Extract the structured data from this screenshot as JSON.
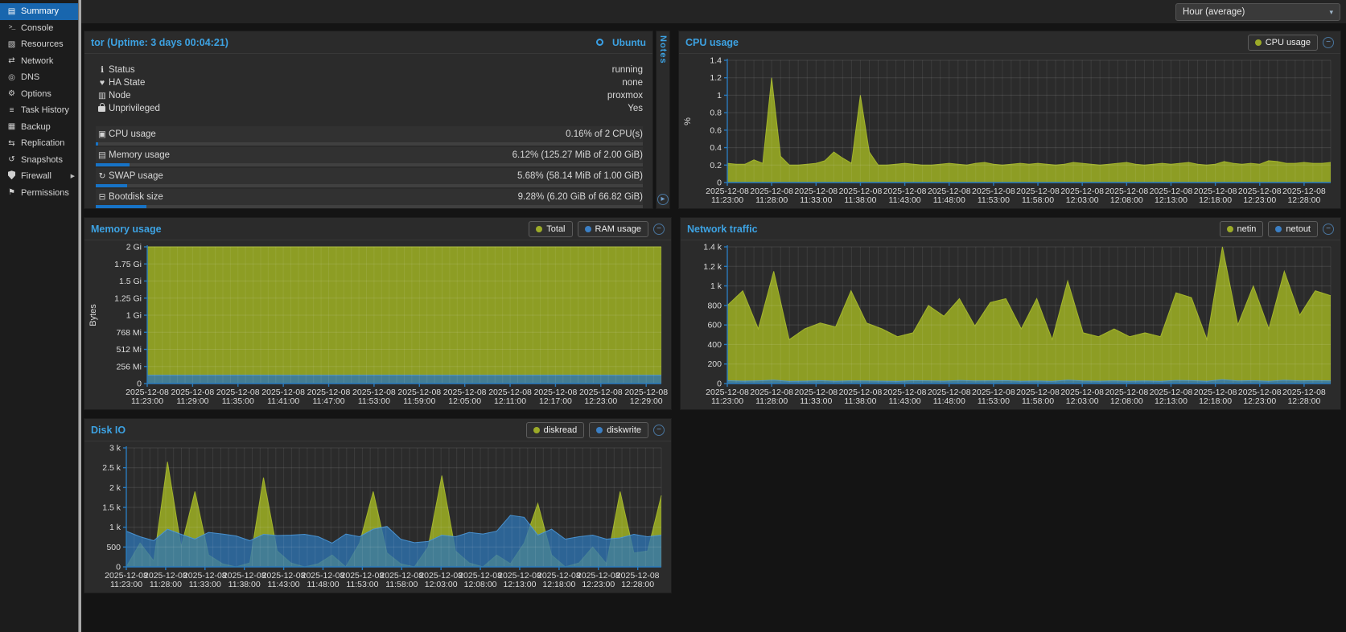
{
  "topbar": {
    "timeframe": "Hour (average)"
  },
  "icons": {
    "summary": "▤",
    "console": ">_",
    "resources": "▧",
    "network": "⇄",
    "dns": "◎",
    "options": "⚙",
    "task-history": "≡",
    "backup": "▦",
    "replication": "⇆",
    "snapshots": "↺",
    "firewall": "",
    "permissions": "⚑",
    "info": "ℹ",
    "heart": "♥",
    "node": "▥",
    "lock": "",
    "cpu": "▣",
    "memory": "▤",
    "swap": "↻",
    "bootdisk": "⊟",
    "minus": "−",
    "chevron-down": "▾",
    "chevron-right": "▸",
    "submenu-arrow": "▶"
  },
  "colors": {
    "accent_blue": "#3da2e2",
    "axis_blue": "#2a7abc",
    "series_olive": "#8d9d24",
    "series_olive_stroke": "#a9bb2a",
    "series_blue": "#2e74b4",
    "series_blue_stroke": "#4a97d8",
    "meter_fill": "#1773c6",
    "legend_dot_olive": "#9cab28",
    "legend_dot_blue": "#3b7fc4"
  },
  "sidebar": {
    "items": [
      {
        "label": "Summary",
        "icon": "summary",
        "selected": true
      },
      {
        "label": "Console",
        "icon": "console"
      },
      {
        "label": "Resources",
        "icon": "resources"
      },
      {
        "label": "Network",
        "icon": "network"
      },
      {
        "label": "DNS",
        "icon": "dns"
      },
      {
        "label": "Options",
        "icon": "options"
      },
      {
        "label": "Task History",
        "icon": "task-history"
      },
      {
        "label": "Backup",
        "icon": "backup"
      },
      {
        "label": "Replication",
        "icon": "replication"
      },
      {
        "label": "Snapshots",
        "icon": "snapshots"
      },
      {
        "label": "Firewall",
        "icon": "firewall",
        "has_submenu": true
      },
      {
        "label": "Permissions",
        "icon": "permissions"
      }
    ]
  },
  "status_panel": {
    "title": "tor (Uptime: 3 days 00:04:21)",
    "os_label": "Ubuntu",
    "notes_tab": "Notes",
    "rows": [
      {
        "icon": "info",
        "label": "Status",
        "value": "running"
      },
      {
        "icon": "heart",
        "label": "HA State",
        "value": "none"
      },
      {
        "icon": "node",
        "label": "Node",
        "value": "proxmox"
      },
      {
        "icon": "lock",
        "label": "Unprivileged",
        "value": "Yes"
      }
    ],
    "meters": [
      {
        "icon": "cpu",
        "label": "CPU usage",
        "value": "0.16% of 2 CPU(s)",
        "percent": 0.16
      },
      {
        "icon": "memory",
        "label": "Memory usage",
        "value": "6.12% (125.27 MiB of 2.00 GiB)",
        "percent": 6.12
      },
      {
        "icon": "swap",
        "label": "SWAP usage",
        "value": "5.68% (58.14 MiB of 1.00 GiB)",
        "percent": 5.68
      },
      {
        "icon": "bootdisk",
        "label": "Bootdisk size",
        "value": "9.28% (6.20 GiB of 66.82 GiB)",
        "percent": 9.28
      }
    ]
  },
  "chart_data": [
    {
      "id": "cpu",
      "type": "area",
      "title": "CPU usage",
      "ylabel": "%",
      "ylim": [
        0,
        1.4
      ],
      "grid": true,
      "legend_position": "header-right",
      "legend": [
        {
          "label": "CPU usage",
          "color": "#9cab28"
        }
      ],
      "yticks": [
        {
          "v": 1.4,
          "label": "1.4"
        },
        {
          "v": 1.2,
          "label": "1.2"
        },
        {
          "v": 1.0,
          "label": "1"
        },
        {
          "v": 0.8,
          "label": "0.8"
        },
        {
          "v": 0.6,
          "label": "0.6"
        },
        {
          "v": 0.4,
          "label": "0.4"
        },
        {
          "v": 0.2,
          "label": "0.2"
        },
        {
          "v": 0,
          "label": "0"
        }
      ],
      "x_date": "2025-12-08",
      "x_total_minutes": 68,
      "xticks": [
        {
          "m": 0,
          "t": "11:23:00"
        },
        {
          "m": 5,
          "t": "11:28:00"
        },
        {
          "m": 10,
          "t": "11:33:00"
        },
        {
          "m": 15,
          "t": "11:38:00"
        },
        {
          "m": 20,
          "t": "11:43:00"
        },
        {
          "m": 25,
          "t": "11:48:00"
        },
        {
          "m": 30,
          "t": "11:53:00"
        },
        {
          "m": 35,
          "t": "11:58:00"
        },
        {
          "m": 40,
          "t": "12:03:00"
        },
        {
          "m": 45,
          "t": "12:08:00"
        },
        {
          "m": 50,
          "t": "12:13:00"
        },
        {
          "m": 55,
          "t": "12:18:00"
        },
        {
          "m": 60,
          "t": "12:23:00"
        },
        {
          "m": 65,
          "t": "12:28:00"
        }
      ],
      "series": [
        {
          "name": "CPU usage",
          "color": "#8d9d24",
          "stroke": "#a9bb2a",
          "opacity": 1,
          "values": [
            0.22,
            0.21,
            0.21,
            0.26,
            0.22,
            1.2,
            0.3,
            0.2,
            0.2,
            0.21,
            0.22,
            0.25,
            0.35,
            0.28,
            0.22,
            1.0,
            0.35,
            0.2,
            0.2,
            0.21,
            0.22,
            0.21,
            0.2,
            0.2,
            0.21,
            0.22,
            0.21,
            0.2,
            0.22,
            0.23,
            0.21,
            0.2,
            0.21,
            0.22,
            0.21,
            0.22,
            0.21,
            0.2,
            0.21,
            0.23,
            0.22,
            0.21,
            0.2,
            0.21,
            0.22,
            0.23,
            0.21,
            0.2,
            0.21,
            0.22,
            0.21,
            0.22,
            0.23,
            0.21,
            0.2,
            0.21,
            0.24,
            0.22,
            0.21,
            0.22,
            0.21,
            0.25,
            0.24,
            0.22,
            0.22,
            0.23,
            0.22,
            0.22,
            0.23
          ]
        }
      ]
    },
    {
      "id": "memory",
      "type": "area",
      "title": "Memory usage",
      "ylabel": "Bytes",
      "ylim": [
        0,
        2
      ],
      "grid": true,
      "legend_position": "header-right",
      "legend": [
        {
          "label": "Total",
          "color": "#9cab28"
        },
        {
          "label": "RAM usage",
          "color": "#3b7fc4"
        }
      ],
      "yticks": [
        {
          "v": 2,
          "label": "2 Gi"
        },
        {
          "v": 1.75,
          "label": "1.75 Gi"
        },
        {
          "v": 1.5,
          "label": "1.5 Gi"
        },
        {
          "v": 1.25,
          "label": "1.25 Gi"
        },
        {
          "v": 1,
          "label": "1 Gi"
        },
        {
          "v": 0.75,
          "label": "768 Mi"
        },
        {
          "v": 0.5,
          "label": "512 Mi"
        },
        {
          "v": 0.25,
          "label": "256 Mi"
        },
        {
          "v": 0,
          "label": "0"
        }
      ],
      "x_date": "2025-12-08",
      "x_total_minutes": 68,
      "xticks": [
        {
          "m": 0,
          "t": "11:23:00"
        },
        {
          "m": 6,
          "t": "11:29:00"
        },
        {
          "m": 12,
          "t": "11:35:00"
        },
        {
          "m": 18,
          "t": "11:41:00"
        },
        {
          "m": 24,
          "t": "11:47:00"
        },
        {
          "m": 30,
          "t": "11:53:00"
        },
        {
          "m": 36,
          "t": "11:59:00"
        },
        {
          "m": 42,
          "t": "12:05:00"
        },
        {
          "m": 48,
          "t": "12:11:00"
        },
        {
          "m": 54,
          "t": "12:17:00"
        },
        {
          "m": 60,
          "t": "12:23:00"
        },
        {
          "m": 66,
          "t": "12:29:00"
        }
      ],
      "series": [
        {
          "name": "Total",
          "color": "#8d9d24",
          "stroke": "#a9bb2a",
          "opacity": 1,
          "values": [
            2,
            2
          ]
        },
        {
          "name": "RAM usage",
          "color": "#2e74b4",
          "stroke": "#4a97d8",
          "opacity": 0.78,
          "values": [
            0.122,
            0.122,
            0.123,
            0.122,
            0.122,
            0.123,
            0.122,
            0.122,
            0.122,
            0.123,
            0.122,
            0.122
          ]
        }
      ]
    },
    {
      "id": "network",
      "type": "area",
      "title": "Network traffic",
      "ylabel": "",
      "ylim": [
        0,
        1400
      ],
      "grid": true,
      "legend_position": "header-right",
      "legend": [
        {
          "label": "netin",
          "color": "#9cab28"
        },
        {
          "label": "netout",
          "color": "#3b7fc4"
        }
      ],
      "yticks": [
        {
          "v": 1400,
          "label": "1.4 k"
        },
        {
          "v": 1200,
          "label": "1.2 k"
        },
        {
          "v": 1000,
          "label": "1 k"
        },
        {
          "v": 800,
          "label": "800"
        },
        {
          "v": 600,
          "label": "600"
        },
        {
          "v": 400,
          "label": "400"
        },
        {
          "v": 200,
          "label": "200"
        },
        {
          "v": 0,
          "label": "0"
        }
      ],
      "x_date": "2025-12-08",
      "x_total_minutes": 68,
      "xticks": [
        {
          "m": 0,
          "t": "11:23:00"
        },
        {
          "m": 5,
          "t": "11:28:00"
        },
        {
          "m": 10,
          "t": "11:33:00"
        },
        {
          "m": 15,
          "t": "11:38:00"
        },
        {
          "m": 20,
          "t": "11:43:00"
        },
        {
          "m": 25,
          "t": "11:48:00"
        },
        {
          "m": 30,
          "t": "11:53:00"
        },
        {
          "m": 35,
          "t": "11:58:00"
        },
        {
          "m": 40,
          "t": "12:03:00"
        },
        {
          "m": 45,
          "t": "12:08:00"
        },
        {
          "m": 50,
          "t": "12:13:00"
        },
        {
          "m": 55,
          "t": "12:18:00"
        },
        {
          "m": 60,
          "t": "12:23:00"
        },
        {
          "m": 65,
          "t": "12:28:00"
        }
      ],
      "series": [
        {
          "name": "netin",
          "color": "#8d9d24",
          "stroke": "#a9bb2a",
          "opacity": 1,
          "values": [
            800,
            950,
            560,
            1150,
            450,
            560,
            620,
            580,
            950,
            620,
            560,
            480,
            520,
            800,
            690,
            870,
            590,
            830,
            870,
            560,
            870,
            450,
            1050,
            520,
            480,
            560,
            480,
            520,
            480,
            930,
            880,
            450,
            1400,
            600,
            1000,
            560,
            1150,
            700,
            950,
            900
          ]
        },
        {
          "name": "netout",
          "color": "#2e74b4",
          "stroke": "#4a97d8",
          "opacity": 0.78,
          "values": [
            30,
            25,
            28,
            35,
            22,
            25,
            30,
            24,
            28,
            26,
            25,
            22,
            30,
            28,
            25,
            32,
            26,
            28,
            30,
            24,
            26,
            22,
            35,
            26,
            24,
            28,
            24,
            26,
            22,
            32,
            30,
            24,
            40,
            26,
            30,
            24,
            34,
            28,
            30,
            28
          ]
        }
      ]
    },
    {
      "id": "disk",
      "type": "area",
      "title": "Disk IO",
      "ylabel": "",
      "ylim": [
        0,
        3000
      ],
      "grid": true,
      "legend_position": "header-right",
      "legend": [
        {
          "label": "diskread",
          "color": "#9cab28"
        },
        {
          "label": "diskwrite",
          "color": "#3b7fc4"
        }
      ],
      "yticks": [
        {
          "v": 3000,
          "label": "3 k"
        },
        {
          "v": 2500,
          "label": "2.5 k"
        },
        {
          "v": 2000,
          "label": "2 k"
        },
        {
          "v": 1500,
          "label": "1.5 k"
        },
        {
          "v": 1000,
          "label": "1 k"
        },
        {
          "v": 500,
          "label": "500"
        },
        {
          "v": 0,
          "label": "0"
        }
      ],
      "x_date": "2025-12-08",
      "x_total_minutes": 68,
      "xticks": [
        {
          "m": 0,
          "t": "11:23:00"
        },
        {
          "m": 5,
          "t": "11:28:00"
        },
        {
          "m": 10,
          "t": "11:33:00"
        },
        {
          "m": 15,
          "t": "11:38:00"
        },
        {
          "m": 20,
          "t": "11:43:00"
        },
        {
          "m": 25,
          "t": "11:48:00"
        },
        {
          "m": 30,
          "t": "11:53:00"
        },
        {
          "m": 35,
          "t": "11:58:00"
        },
        {
          "m": 40,
          "t": "12:03:00"
        },
        {
          "m": 45,
          "t": "12:08:00"
        },
        {
          "m": 50,
          "t": "12:13:00"
        },
        {
          "m": 55,
          "t": "12:18:00"
        },
        {
          "m": 60,
          "t": "12:23:00"
        },
        {
          "m": 65,
          "t": "12:28:00"
        }
      ],
      "series": [
        {
          "name": "diskread",
          "color": "#8d9d24",
          "stroke": "#a9bb2a",
          "opacity": 1,
          "values": [
            0,
            600,
            150,
            2650,
            500,
            1900,
            300,
            80,
            0,
            100,
            2250,
            400,
            100,
            0,
            80,
            300,
            0,
            600,
            1900,
            350,
            80,
            0,
            500,
            2300,
            400,
            100,
            0,
            300,
            80,
            600,
            1600,
            300,
            0,
            100,
            500,
            80,
            1900,
            350,
            400,
            1800
          ]
        },
        {
          "name": "diskwrite",
          "color": "#2e74b4",
          "stroke": "#4a97d8",
          "opacity": 0.78,
          "values": [
            900,
            760,
            660,
            950,
            820,
            700,
            870,
            830,
            780,
            660,
            820,
            790,
            800,
            820,
            760,
            600,
            830,
            760,
            950,
            1020,
            700,
            610,
            640,
            800,
            760,
            870,
            830,
            900,
            1300,
            1250,
            800,
            950,
            700,
            760,
            800,
            700,
            730,
            820,
            760,
            800
          ]
        }
      ]
    }
  ]
}
